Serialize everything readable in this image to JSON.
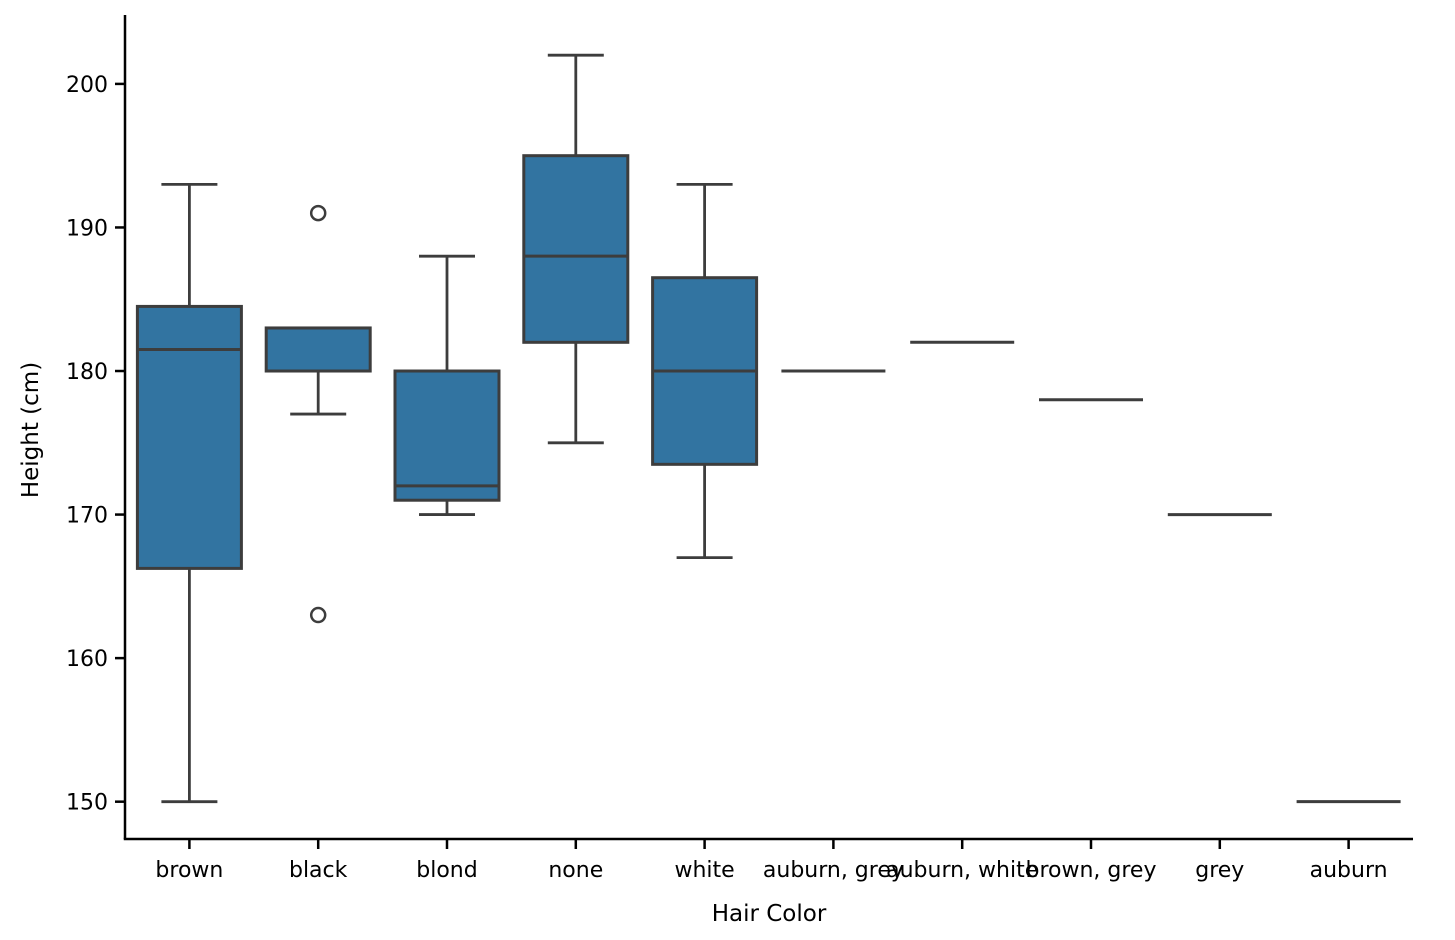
{
  "chart_data": {
    "type": "box",
    "title": "",
    "xlabel": "Hair Color",
    "ylabel": "Height (cm)",
    "ylim": [
      147.4,
      204.8
    ],
    "yticks": [
      150,
      160,
      170,
      180,
      190,
      200
    ],
    "grid": false,
    "legend": null,
    "categories": [
      "brown",
      "black",
      "blond",
      "none",
      "white",
      "auburn, grey",
      "auburn, white",
      "brown, grey",
      "grey",
      "auburn"
    ],
    "boxes": [
      {
        "category": "brown",
        "whisker_low": 150,
        "q1": 166.25,
        "median": 181.5,
        "q3": 184.5,
        "whisker_high": 193,
        "outliers": []
      },
      {
        "category": "black",
        "whisker_low": 177,
        "q1": 180,
        "median": 183,
        "q3": 183,
        "whisker_high": 183,
        "outliers": [
          191,
          163
        ]
      },
      {
        "category": "blond",
        "whisker_low": 170,
        "q1": 171,
        "median": 172,
        "q3": 180,
        "whisker_high": 188,
        "outliers": []
      },
      {
        "category": "none",
        "whisker_low": 175,
        "q1": 182,
        "median": 188,
        "q3": 195,
        "whisker_high": 202,
        "outliers": []
      },
      {
        "category": "white",
        "whisker_low": 167,
        "q1": 173.5,
        "median": 180,
        "q3": 186.5,
        "whisker_high": 193,
        "outliers": []
      },
      {
        "category": "auburn, grey",
        "whisker_low": 180,
        "q1": 180,
        "median": 180,
        "q3": 180,
        "whisker_high": 180,
        "outliers": []
      },
      {
        "category": "auburn, white",
        "whisker_low": 182,
        "q1": 182,
        "median": 182,
        "q3": 182,
        "whisker_high": 182,
        "outliers": []
      },
      {
        "category": "brown, grey",
        "whisker_low": 178,
        "q1": 178,
        "median": 178,
        "q3": 178,
        "whisker_high": 178,
        "outliers": []
      },
      {
        "category": "grey",
        "whisker_low": 170,
        "q1": 170,
        "median": 170,
        "q3": 170,
        "whisker_high": 170,
        "outliers": []
      },
      {
        "category": "auburn",
        "whisker_low": 150,
        "q1": 150,
        "median": 150,
        "q3": 150,
        "whisker_high": 150,
        "outliers": []
      }
    ],
    "colors": {
      "box_fill": "#3274a1",
      "box_line": "#3d3d3d",
      "axis": "#000000",
      "text": "#000000"
    }
  }
}
